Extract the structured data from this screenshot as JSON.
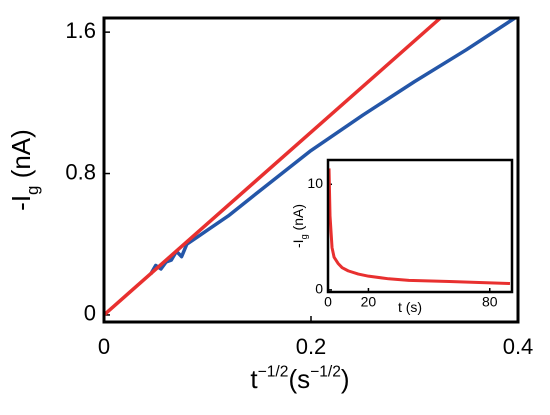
{
  "chart_data": [
    {
      "type": "line",
      "xlabel": [
        "t",
        "−1/2",
        "(s",
        "−1/2",
        ")"
      ],
      "ylabel": [
        "-I",
        "g",
        " (nA)"
      ],
      "xlim": [
        0,
        0.4
      ],
      "ylim": [
        -0.04,
        1.68
      ],
      "xticks": [
        0,
        0.2,
        0.4
      ],
      "yticks": [
        0,
        0.8,
        1.6
      ],
      "series": [
        {
          "color": "#2456a8",
          "x": [
            0.045,
            0.05,
            0.055,
            0.06,
            0.065,
            0.07,
            0.075,
            0.08,
            0.09,
            0.1,
            0.12,
            0.15,
            0.2,
            0.25,
            0.3,
            0.35,
            0.397
          ],
          "values": [
            0.23,
            0.28,
            0.26,
            0.3,
            0.31,
            0.36,
            0.33,
            0.4,
            0.44,
            0.48,
            0.56,
            0.7,
            0.93,
            1.13,
            1.32,
            1.5,
            1.68
          ]
        },
        {
          "color": "#e8302f",
          "x": [
            0,
            0.325
          ],
          "values": [
            0,
            1.68
          ]
        }
      ]
    },
    {
      "type": "line",
      "xlabel": [
        "t (s)"
      ],
      "ylabel": [
        "-I",
        "g",
        " (nA)"
      ],
      "xlim": [
        0,
        91
      ],
      "ylim": [
        -0.2,
        12.3
      ],
      "xticks": [
        0,
        20,
        80
      ],
      "yticks": [
        0,
        10
      ],
      "series": [
        {
          "color": "#e8302f",
          "x": [
            0.5,
            1,
            2,
            3,
            5,
            7,
            10,
            15,
            20,
            30,
            40,
            60,
            90
          ],
          "values": [
            11.5,
            7,
            4,
            3.1,
            2.5,
            2.1,
            1.8,
            1.5,
            1.3,
            1.05,
            0.9,
            0.8,
            0.6
          ]
        }
      ]
    }
  ]
}
